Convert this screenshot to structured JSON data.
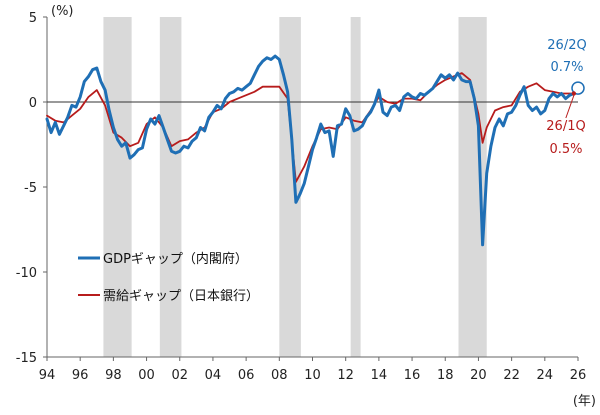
{
  "chart_data": {
    "type": "line",
    "ylabel": "(%)",
    "xlabel": "(年)",
    "ylim": [
      -15,
      5
    ],
    "xlim": [
      1994,
      2026
    ],
    "yticks": [
      5,
      0,
      -5,
      -10,
      -15
    ],
    "xticks": [
      "94",
      "96",
      "98",
      "00",
      "02",
      "04",
      "06",
      "08",
      "10",
      "12",
      "14",
      "16",
      "18",
      "20",
      "22",
      "24",
      "26"
    ],
    "grid": false,
    "legend_position": "lower-left",
    "recession_shading": [
      [
        1997.4,
        1999.1
      ],
      [
        2000.8,
        2002.1
      ],
      [
        2008.0,
        2009.3
      ],
      [
        2012.3,
        2012.9
      ],
      [
        2018.8,
        2020.5
      ]
    ],
    "series": [
      {
        "name": "GDPギャップ（内閣府）",
        "color": "#1f6fb5",
        "points": [
          [
            1994.0,
            -1.0
          ],
          [
            1994.25,
            -1.8
          ],
          [
            1994.5,
            -1.2
          ],
          [
            1994.75,
            -1.9
          ],
          [
            1995.0,
            -1.4
          ],
          [
            1995.25,
            -0.9
          ],
          [
            1995.5,
            -0.2
          ],
          [
            1995.75,
            -0.3
          ],
          [
            1996.0,
            0.3
          ],
          [
            1996.25,
            1.2
          ],
          [
            1996.5,
            1.5
          ],
          [
            1996.75,
            1.9
          ],
          [
            1997.0,
            2.0
          ],
          [
            1997.25,
            1.2
          ],
          [
            1997.5,
            0.7
          ],
          [
            1997.75,
            -0.5
          ],
          [
            1998.0,
            -1.5
          ],
          [
            1998.25,
            -2.2
          ],
          [
            1998.5,
            -2.6
          ],
          [
            1998.75,
            -2.4
          ],
          [
            1999.0,
            -3.3
          ],
          [
            1999.25,
            -3.1
          ],
          [
            1999.5,
            -2.8
          ],
          [
            1999.75,
            -2.7
          ],
          [
            2000.0,
            -1.6
          ],
          [
            2000.25,
            -1.0
          ],
          [
            2000.5,
            -1.3
          ],
          [
            2000.75,
            -0.8
          ],
          [
            2001.0,
            -1.5
          ],
          [
            2001.25,
            -2.2
          ],
          [
            2001.5,
            -2.9
          ],
          [
            2001.75,
            -3.0
          ],
          [
            2002.0,
            -2.9
          ],
          [
            2002.25,
            -2.6
          ],
          [
            2002.5,
            -2.7
          ],
          [
            2002.75,
            -2.3
          ],
          [
            2003.0,
            -2.1
          ],
          [
            2003.25,
            -1.5
          ],
          [
            2003.5,
            -1.7
          ],
          [
            2003.75,
            -0.9
          ],
          [
            2004.0,
            -0.6
          ],
          [
            2004.25,
            -0.2
          ],
          [
            2004.5,
            -0.4
          ],
          [
            2004.75,
            0.2
          ],
          [
            2005.0,
            0.5
          ],
          [
            2005.25,
            0.6
          ],
          [
            2005.5,
            0.8
          ],
          [
            2005.75,
            0.7
          ],
          [
            2006.0,
            0.9
          ],
          [
            2006.25,
            1.1
          ],
          [
            2006.5,
            1.6
          ],
          [
            2006.75,
            2.1
          ],
          [
            2007.0,
            2.4
          ],
          [
            2007.25,
            2.6
          ],
          [
            2007.5,
            2.5
          ],
          [
            2007.75,
            2.7
          ],
          [
            2008.0,
            2.5
          ],
          [
            2008.25,
            1.6
          ],
          [
            2008.5,
            0.6
          ],
          [
            2008.75,
            -2.2
          ],
          [
            2009.0,
            -5.9
          ],
          [
            2009.25,
            -5.4
          ],
          [
            2009.5,
            -4.8
          ],
          [
            2009.75,
            -3.8
          ],
          [
            2010.0,
            -2.8
          ],
          [
            2010.25,
            -2.1
          ],
          [
            2010.5,
            -1.3
          ],
          [
            2010.75,
            -1.8
          ],
          [
            2011.0,
            -1.7
          ],
          [
            2011.25,
            -3.2
          ],
          [
            2011.5,
            -1.4
          ],
          [
            2011.75,
            -1.3
          ],
          [
            2012.0,
            -0.4
          ],
          [
            2012.25,
            -0.8
          ],
          [
            2012.5,
            -1.7
          ],
          [
            2012.75,
            -1.6
          ],
          [
            2013.0,
            -1.4
          ],
          [
            2013.25,
            -0.9
          ],
          [
            2013.5,
            -0.6
          ],
          [
            2013.75,
            -0.1
          ],
          [
            2014.0,
            0.7
          ],
          [
            2014.25,
            -0.6
          ],
          [
            2014.5,
            -0.8
          ],
          [
            2014.75,
            -0.3
          ],
          [
            2015.0,
            -0.2
          ],
          [
            2015.25,
            -0.5
          ],
          [
            2015.5,
            0.3
          ],
          [
            2015.75,
            0.5
          ],
          [
            2016.0,
            0.3
          ],
          [
            2016.25,
            0.2
          ],
          [
            2016.5,
            0.5
          ],
          [
            2016.75,
            0.4
          ],
          [
            2017.0,
            0.6
          ],
          [
            2017.25,
            0.8
          ],
          [
            2017.5,
            1.2
          ],
          [
            2017.75,
            1.6
          ],
          [
            2018.0,
            1.4
          ],
          [
            2018.25,
            1.6
          ],
          [
            2018.5,
            1.3
          ],
          [
            2018.75,
            1.7
          ],
          [
            2019.0,
            1.3
          ],
          [
            2019.25,
            1.2
          ],
          [
            2019.5,
            1.2
          ],
          [
            2019.75,
            0.2
          ],
          [
            2020.0,
            -1.4
          ],
          [
            2020.25,
            -8.4
          ],
          [
            2020.5,
            -4.2
          ],
          [
            2020.75,
            -2.6
          ],
          [
            2021.0,
            -1.5
          ],
          [
            2021.25,
            -1.0
          ],
          [
            2021.5,
            -1.4
          ],
          [
            2021.75,
            -0.7
          ],
          [
            2022.0,
            -0.6
          ],
          [
            2022.25,
            -0.2
          ],
          [
            2022.5,
            0.4
          ],
          [
            2022.75,
            0.9
          ],
          [
            2023.0,
            -0.2
          ],
          [
            2023.25,
            -0.5
          ],
          [
            2023.5,
            -0.3
          ],
          [
            2023.75,
            -0.7
          ],
          [
            2024.0,
            -0.5
          ],
          [
            2024.25,
            0.2
          ],
          [
            2024.5,
            0.5
          ],
          [
            2024.75,
            0.3
          ],
          [
            2025.0,
            0.5
          ],
          [
            2025.25,
            0.2
          ],
          [
            2025.5,
            0.4
          ],
          [
            2025.75,
            0.5
          ],
          [
            2026.0,
            0.7
          ]
        ]
      },
      {
        "name": "需給ギャップ（日本銀行）",
        "color": "#b71c1c",
        "points": [
          [
            1994.0,
            -0.8
          ],
          [
            1994.5,
            -1.1
          ],
          [
            1995.0,
            -1.2
          ],
          [
            1995.5,
            -0.8
          ],
          [
            1996.0,
            -0.4
          ],
          [
            1996.5,
            0.3
          ],
          [
            1997.0,
            0.7
          ],
          [
            1997.5,
            -0.2
          ],
          [
            1998.0,
            -1.8
          ],
          [
            1998.5,
            -2.1
          ],
          [
            1999.0,
            -2.6
          ],
          [
            1999.5,
            -2.4
          ],
          [
            2000.0,
            -1.3
          ],
          [
            2000.5,
            -0.9
          ],
          [
            2001.0,
            -1.5
          ],
          [
            2001.5,
            -2.6
          ],
          [
            2002.0,
            -2.3
          ],
          [
            2002.5,
            -2.2
          ],
          [
            2003.0,
            -1.8
          ],
          [
            2003.5,
            -1.5
          ],
          [
            2004.0,
            -0.6
          ],
          [
            2004.5,
            -0.4
          ],
          [
            2005.0,
            0.0
          ],
          [
            2005.5,
            0.2
          ],
          [
            2006.0,
            0.4
          ],
          [
            2006.5,
            0.6
          ],
          [
            2007.0,
            0.9
          ],
          [
            2007.5,
            0.9
          ],
          [
            2008.0,
            0.9
          ],
          [
            2008.5,
            0.2
          ],
          [
            2009.0,
            -4.7
          ],
          [
            2009.5,
            -3.8
          ],
          [
            2010.0,
            -2.6
          ],
          [
            2010.5,
            -1.6
          ],
          [
            2011.0,
            -1.5
          ],
          [
            2011.5,
            -1.6
          ],
          [
            2012.0,
            -0.9
          ],
          [
            2012.5,
            -1.1
          ],
          [
            2013.0,
            -1.2
          ],
          [
            2013.5,
            -0.5
          ],
          [
            2014.0,
            0.3
          ],
          [
            2014.5,
            0.0
          ],
          [
            2015.0,
            -0.1
          ],
          [
            2015.5,
            0.2
          ],
          [
            2016.0,
            0.2
          ],
          [
            2016.5,
            0.1
          ],
          [
            2017.0,
            0.6
          ],
          [
            2017.5,
            1.0
          ],
          [
            2018.0,
            1.3
          ],
          [
            2018.5,
            1.5
          ],
          [
            2019.0,
            1.7
          ],
          [
            2019.5,
            1.3
          ],
          [
            2020.0,
            -0.7
          ],
          [
            2020.25,
            -2.4
          ],
          [
            2020.5,
            -1.5
          ],
          [
            2021.0,
            -0.5
          ],
          [
            2021.5,
            -0.3
          ],
          [
            2022.0,
            -0.2
          ],
          [
            2022.5,
            0.6
          ],
          [
            2023.0,
            0.9
          ],
          [
            2023.5,
            1.1
          ],
          [
            2024.0,
            0.7
          ],
          [
            2024.5,
            0.6
          ],
          [
            2025.0,
            0.5
          ],
          [
            2025.5,
            0.5
          ],
          [
            2025.75,
            0.5
          ]
        ]
      }
    ],
    "annotations": [
      {
        "name": "gdp-annotation",
        "lines": [
          "26/2Q",
          "0.7%"
        ],
        "color": "#1f6fb5",
        "x": 2026.0,
        "y": 0.7
      },
      {
        "name": "boj-annotation",
        "lines": [
          "26/1Q",
          "0.5%"
        ],
        "color": "#b71c1c",
        "x": 2025.75,
        "y": 0.5
      }
    ]
  }
}
